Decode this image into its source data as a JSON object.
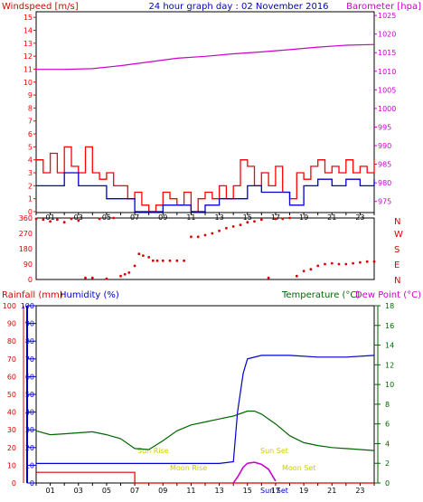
{
  "colors": {
    "wind": "#ff0000",
    "windGust": "#ff0000",
    "windAvg": "#0000cc",
    "baro": "#cc00cc",
    "direction": "#dd0000",
    "rain": "#dd0000",
    "humidity": "#0000cc",
    "temp": "#006600",
    "dew": "#cc00cc",
    "sun": "#dddd00",
    "moon": "#dddd00",
    "frame": "#000000"
  },
  "top": {
    "title": "24 hour graph day : 02 November 2016",
    "left_label": "Windspeed [m/s]",
    "right_label": "Barometer [hpa]",
    "y_left": [
      "15",
      "14",
      "13",
      "12",
      "11",
      "10",
      "9",
      "8",
      "7",
      "6",
      "5",
      "4",
      "3",
      "2",
      "1",
      "0"
    ],
    "y_right": [
      "1025",
      "1020",
      "1015",
      "1010",
      "1005",
      "1000",
      "995",
      "990",
      "985",
      "980",
      "975"
    ],
    "x_ticks": [
      "01",
      "03",
      "05",
      "07",
      "09",
      "11",
      "13",
      "15",
      "17",
      "19",
      "21",
      "23"
    ]
  },
  "mid": {
    "y_left": [
      "360",
      "270",
      "180",
      "90",
      "0"
    ],
    "y_right": [
      "N",
      "W",
      "S",
      "E",
      "N"
    ]
  },
  "bottom": {
    "rain_label": "Rainfall (mm)",
    "hum_label": "Humidity (%)",
    "temp_label": "Temperature (°C)",
    "dew_label": "Dew Point (°C)",
    "y_left": [
      "100",
      "90",
      "80",
      "70",
      "60",
      "50",
      "40",
      "30",
      "20",
      "10",
      "0"
    ],
    "y_rain": [
      "100",
      "90",
      "80",
      "70",
      "60",
      "50",
      "40",
      "30",
      "20",
      "10",
      "0"
    ],
    "y_right": [
      "18",
      "16",
      "14",
      "12",
      "10",
      "8",
      "6",
      "4",
      "2",
      "0"
    ],
    "x_ticks": [
      "01",
      "03",
      "05",
      "07",
      "09",
      "11",
      "13",
      "15",
      "17",
      "19",
      "21",
      "23"
    ],
    "sun_rise": "Sun Rise",
    "sun_set": "Sun Set",
    "moon_rise": "Moon Rise",
    "moon_set": "Moon Set",
    "sun_set_x": "Sun Set"
  },
  "chart_data": [
    {
      "type": "line",
      "title": "24 hour graph day : 02 November 2016",
      "xlabel": "",
      "ylabel": "Windspeed [m/s]",
      "ylim": [
        0,
        15
      ],
      "y2label": "Barometer [hpa]",
      "y2lim": [
        972,
        1026
      ],
      "series": [
        {
          "name": "Barometer [hpa]",
          "axis": "right",
          "x": [
            0,
            2,
            4,
            6,
            8,
            10,
            12,
            14,
            16,
            18,
            20,
            22,
            24
          ],
          "values": [
            1010.5,
            1010.5,
            1010.7,
            1011.5,
            1012.5,
            1013.5,
            1014,
            1014.7,
            1015.2,
            1015.8,
            1016.5,
            1017,
            1017.2
          ]
        },
        {
          "name": "Windspeed [m/s]",
          "axis": "left",
          "x": [
            0,
            0.5,
            1,
            1.5,
            2,
            2.5,
            3,
            3.5,
            4,
            4.5,
            5,
            5.5,
            6,
            6.5,
            7,
            7.5,
            8,
            8.5,
            9,
            9.5,
            10,
            10.5,
            11,
            11.5,
            12,
            12.5,
            13,
            13.5,
            14,
            14.5,
            15,
            15.5,
            16,
            16.5,
            17,
            17.5,
            18,
            18.5,
            19,
            19.5,
            20,
            20.5,
            21,
            21.5,
            22,
            22.5,
            23,
            23.5,
            24
          ],
          "values": [
            4,
            3,
            4.5,
            3,
            5,
            3.5,
            3,
            5,
            3,
            2.5,
            3,
            2,
            2,
            1,
            1.5,
            0.5,
            0,
            0.5,
            1.5,
            1,
            0.5,
            1.5,
            0,
            1,
            1.5,
            1,
            2,
            1,
            2,
            4,
            3.5,
            2,
            3,
            2,
            3.5,
            1.5,
            1,
            3,
            2.5,
            3.5,
            4,
            3,
            3.5,
            3,
            4,
            3,
            3.5,
            3,
            4
          ]
        },
        {
          "name": "Windspeed avg [m/s]",
          "axis": "left",
          "x": [
            0,
            1,
            2,
            3,
            4,
            5,
            6,
            7,
            8,
            9,
            10,
            11,
            12,
            13,
            14,
            15,
            16,
            17,
            18,
            19,
            20,
            21,
            22,
            23,
            24
          ],
          "values": [
            2,
            2,
            3,
            2,
            2,
            1,
            1,
            0,
            0,
            0.5,
            0.5,
            0,
            0.5,
            1,
            1,
            2,
            1.5,
            1.5,
            0.5,
            2,
            2.5,
            2,
            2.5,
            2,
            2.5
          ]
        }
      ]
    },
    {
      "type": "scatter",
      "xlabel": "",
      "ylabel": "",
      "ylim": [
        0,
        360
      ],
      "series": [
        {
          "name": "Wind direction",
          "x": [
            0,
            0.5,
            1,
            1.5,
            2,
            2.5,
            3,
            3.5,
            4,
            4.5,
            5,
            5.5,
            6,
            6.3,
            6.6,
            7,
            7.3,
            7.6,
            8,
            8.3,
            8.6,
            9,
            9.5,
            10,
            10.5,
            11,
            11.5,
            12,
            12.5,
            13,
            13.5,
            14,
            14.5,
            15,
            15.5,
            16,
            16.5,
            17,
            17.5,
            18,
            18.5,
            19,
            19.5,
            20,
            20.5,
            21,
            21.5,
            22,
            22.5,
            23,
            23.5,
            24
          ],
          "values": [
            355,
            350,
            340,
            350,
            335,
            355,
            345,
            10,
            10,
            355,
            5,
            360,
            20,
            30,
            40,
            80,
            150,
            140,
            130,
            110,
            110,
            110,
            110,
            110,
            110,
            250,
            250,
            260,
            270,
            285,
            300,
            310,
            320,
            335,
            340,
            350,
            10,
            355,
            355,
            360,
            20,
            50,
            60,
            80,
            90,
            95,
            90,
            90,
            95,
            100,
            105,
            105
          ]
        }
      ]
    },
    {
      "type": "line",
      "xlabel": "",
      "ylabel": "Humidity (%)",
      "ylim": [
        0,
        100
      ],
      "y2label": "Temperature (°C)",
      "y2lim": [
        0,
        18
      ],
      "series": [
        {
          "name": "Humidity (%)",
          "axis": "left",
          "x": [
            0,
            2,
            4,
            6,
            8,
            10,
            12,
            13,
            14,
            14.3,
            14.7,
            15,
            16,
            18,
            20,
            22,
            24
          ],
          "values": [
            11,
            11,
            11,
            11,
            11,
            11,
            11,
            11,
            12,
            40,
            62,
            70,
            72,
            72,
            71,
            71,
            72
          ]
        },
        {
          "name": "Rainfall (mm)",
          "axis": "left",
          "x": [
            0,
            4,
            6,
            6.98,
            7,
            24
          ],
          "values": [
            6,
            6,
            6,
            6,
            0,
            0
          ]
        },
        {
          "name": "Temperature (°C)",
          "axis": "right",
          "x": [
            0,
            1,
            2,
            3,
            4,
            5,
            6,
            7,
            8,
            9,
            10,
            11,
            12,
            13,
            14,
            15,
            15.5,
            16,
            17,
            18,
            19,
            20,
            21,
            22,
            23,
            24
          ],
          "values": [
            5.3,
            4.9,
            5,
            5.1,
            5.2,
            4.9,
            4.5,
            3.5,
            3.4,
            4.3,
            5.3,
            5.9,
            6.2,
            6.5,
            6.8,
            7.3,
            7.3,
            7,
            6,
            4.8,
            4.1,
            3.8,
            3.6,
            3.5,
            3.4,
            3.3
          ]
        },
        {
          "name": "Dew Point (°C)",
          "axis": "right",
          "x": [
            14,
            14.3,
            14.7,
            15,
            15.5,
            16,
            16.5,
            17
          ],
          "values": [
            0,
            0.6,
            1.6,
            2,
            2.1,
            1.9,
            1.4,
            0.2
          ]
        }
      ]
    }
  ]
}
